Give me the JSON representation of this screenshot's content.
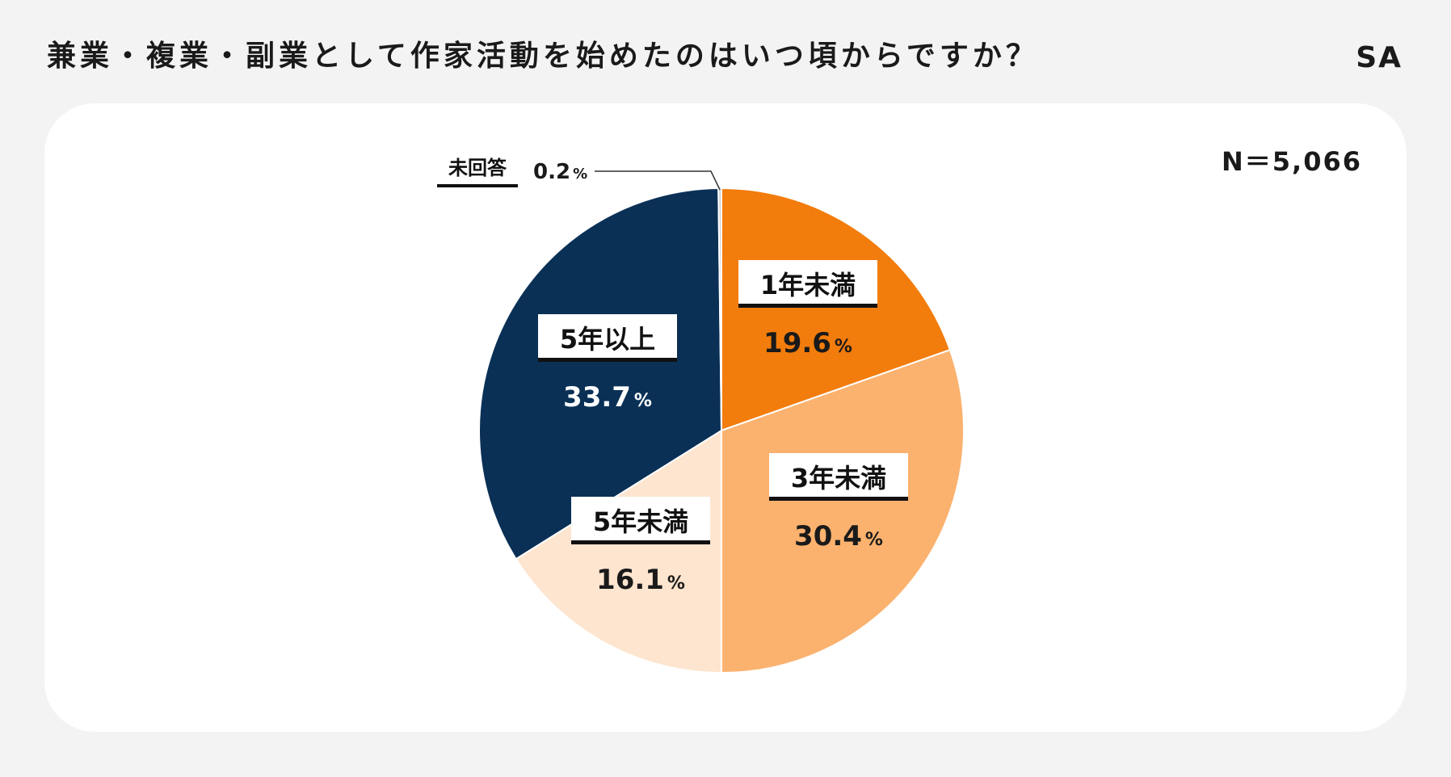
{
  "title": "兼業・複業・副業として作家活動を始めたのはいつ頃からですか？",
  "answer_type": "SA",
  "sample_size": "N＝5,066",
  "chart_data": {
    "type": "pie",
    "title": "兼業・複業・副業として作家活動を始めたのはいつ頃からですか？",
    "start": "top",
    "direction": "clockwise",
    "categories": [
      "1年未満",
      "3年未満",
      "5年未満",
      "5年以上",
      "未回答"
    ],
    "values": [
      19.6,
      30.4,
      16.1,
      33.7,
      0.2
    ],
    "value_labels": [
      "19.6",
      "30.4",
      "16.1",
      "33.7",
      "0.2"
    ],
    "unit": "%",
    "colors": [
      "#f27c0c",
      "#fbb26f",
      "#fde5cf",
      "#0a3056",
      "#cccccc"
    ]
  }
}
